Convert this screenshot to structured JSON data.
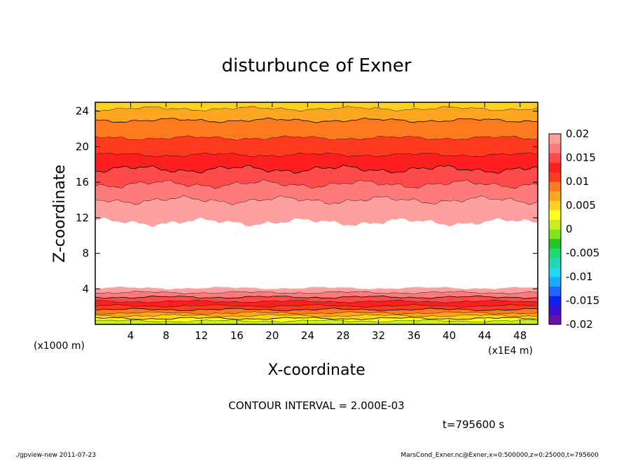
{
  "chart_data": {
    "type": "heatmap",
    "title": "disturbunce of Exner",
    "xlabel": "X-coordinate",
    "ylabel": "Z-coordinate",
    "x_unit": "(x1E4 m)",
    "y_unit": "(x1000 m)",
    "xlim": [
      0,
      50
    ],
    "ylim": [
      0,
      25
    ],
    "xticks": [
      4,
      8,
      12,
      16,
      20,
      24,
      28,
      32,
      36,
      40,
      44,
      48
    ],
    "yticks": [
      4,
      8,
      12,
      16,
      20,
      24
    ],
    "contour_interval_text": "CONTOUR INTERVAL = 2.000E-03",
    "time_text": "t=795600 s",
    "colorbar": {
      "ticks": [
        "0.02",
        "0.015",
        "0.01",
        "0.005",
        "0",
        "-0.005",
        "-0.01",
        "-0.015",
        "-0.02"
      ],
      "colors": [
        "#6a0fb0",
        "#3a0fd0",
        "#0f1ff0",
        "#1f68ff",
        "#1fa8ff",
        "#1fd8f0",
        "#1fd8b0",
        "#1fd878",
        "#21c821",
        "#7fe41f",
        "#c8f01f",
        "#ffff1f",
        "#ffd21f",
        "#ffa51f",
        "#ff7a1f",
        "#ff3a1f",
        "#ff1f1f",
        "#ff4a4a",
        "#ff7a7a",
        "#ffa0a0"
      ]
    },
    "layers": [
      {
        "value": 0.0,
        "z_top": 0.4
      },
      {
        "value": 0.002,
        "z_top": 0.7
      },
      {
        "value": 0.004,
        "z_top": 1.0
      },
      {
        "value": 0.006,
        "z_top": 1.3
      },
      {
        "value": 0.008,
        "z_top": 1.7
      },
      {
        "value": 0.01,
        "z_top": 2.1
      },
      {
        "value": 0.012,
        "z_top": 2.6
      },
      {
        "value": 0.014,
        "z_top": 3.1
      },
      {
        "value": 0.016,
        "z_top": 3.6
      },
      {
        "value": 0.018,
        "z_top": 4.1
      },
      {
        "value": null,
        "z_top": 11.5
      },
      {
        "value": 0.018,
        "z_top": 14.0
      },
      {
        "value": 0.016,
        "z_top": 15.8
      },
      {
        "value": 0.014,
        "z_top": 17.5
      },
      {
        "value": 0.012,
        "z_top": 19.1
      },
      {
        "value": 0.01,
        "z_top": 21.0
      },
      {
        "value": 0.008,
        "z_top": 23.0
      },
      {
        "value": 0.006,
        "z_top": 24.3
      },
      {
        "value": 0.004,
        "z_top": 25.0
      }
    ]
  },
  "footer": {
    "left": "./gpview-new   2011-07-23",
    "right": "MarsCond_Exner.nc@Exner,x=0:500000,z=0:25000,t=795600"
  }
}
